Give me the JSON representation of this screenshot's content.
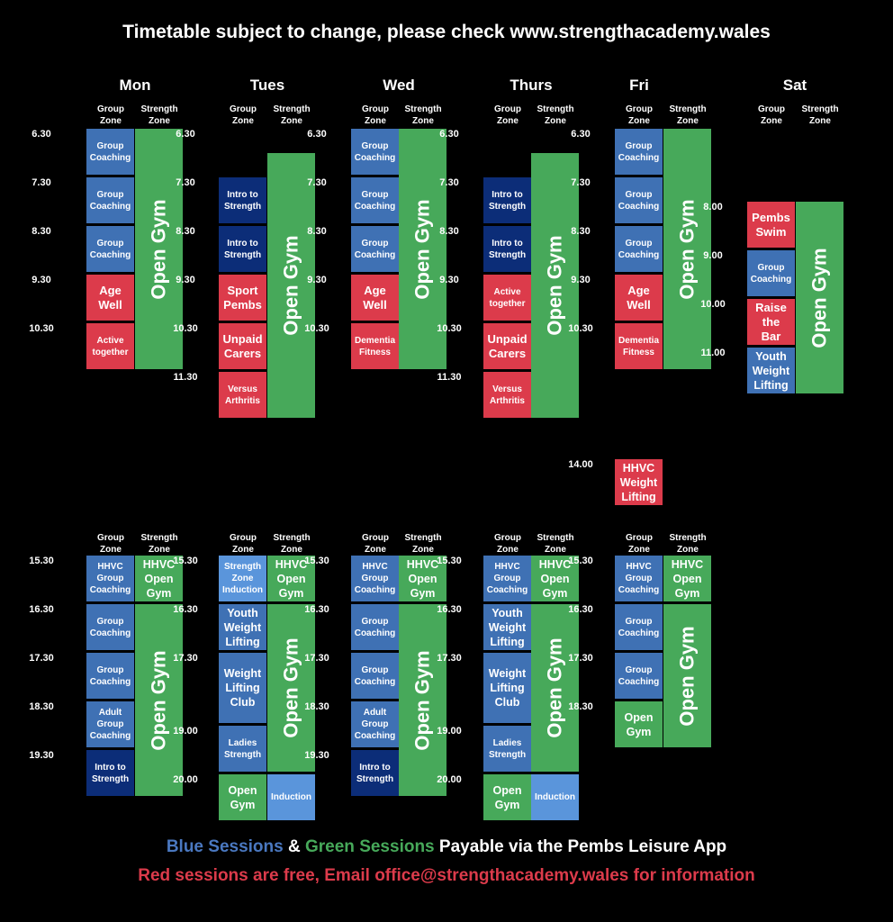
{
  "title": "Timetable subject to change, please check www.strengthacademy.wales",
  "headers": {
    "group": "Group\nZone",
    "strength": "Strength\nZone"
  },
  "days": [
    "Mon",
    "Tues",
    "Wed",
    "Thurs",
    "Fri",
    "Sat"
  ],
  "colors": {
    "blue": "#3f71b4",
    "navy": "#0c2d78",
    "light_blue": "#5a95db",
    "red": "#dc3b4b",
    "green": "#47a95a"
  },
  "times": {
    "mon_am": [
      "6.30",
      "7.30",
      "8.30",
      "9.30",
      "10.30"
    ],
    "tue_am": [
      "6.30",
      "7.30",
      "8.30",
      "9.30",
      "10.30",
      "11.30"
    ],
    "wed_am": [
      "6.30",
      "7.30",
      "8.30",
      "9.30",
      "10.30"
    ],
    "thu_am": [
      "6.30",
      "7.30",
      "8.30",
      "9.30",
      "10.30",
      "11.30"
    ],
    "fri_am": [
      "6.30",
      "7.30",
      "8.30",
      "9.30",
      "10.30"
    ],
    "sat_am": [
      "8.00",
      "9.00",
      "10.00",
      "11.00"
    ],
    "fri_mid": [
      "14.00"
    ],
    "mon_pm": [
      "15.30",
      "16.30",
      "17.30",
      "18.30",
      "19.30"
    ],
    "tue_pm": [
      "15.30",
      "16.30",
      "17.30",
      "19.00",
      "20.00"
    ],
    "wed_pm": [
      "15.30",
      "16.30",
      "17.30",
      "18.30",
      "19.30"
    ],
    "thu_pm": [
      "15.30",
      "16.30",
      "17.30",
      "19.00",
      "20.00"
    ],
    "fri_pm": [
      "15.30",
      "16.30",
      "17.30",
      "18.30"
    ]
  },
  "sessions": {
    "group_coaching": "Group\nCoaching",
    "open_gym": "Open Gym",
    "intro_strength": "Intro to\nStrength",
    "age_well": "Age\nWell",
    "active_together": "Active\ntogether",
    "sport_pembs": "Sport\nPembs",
    "unpaid_carers": "Unpaid\nCarers",
    "versus_arthritis": "Versus\nArthritis",
    "dementia_fitness": "Dementia\nFitness",
    "pembs_swim": "Pembs\nSwim",
    "raise_bar": "Raise\nthe\nBar",
    "youth_wl_sat": "Youth\nWeight\nLifting",
    "hhvc_wl": "HHVC\nWeight\nLifting",
    "hhvc_group": "HHVC\nGroup\nCoaching",
    "hhvc_open": "HHVC\nOpen\nGym",
    "adult_group": "Adult\nGroup\nCoaching",
    "sz_induction": "Strength\nZone\nInduction",
    "youth_wl": "Youth\nWeight\nLifting",
    "wl_club": "Weight\nLifting\nClub",
    "ladies_strength": "Ladies\nStrength",
    "open_gym_small": "Open\nGym",
    "induction": "Induction"
  },
  "footer": {
    "blue": "Blue Sessions",
    "amp": " & ",
    "green": "Green Sessions",
    "payable": " Payable via the Pembs Leisure App",
    "red_line": "Red sessions are free, Email office@strengthacademy.wales for information"
  }
}
